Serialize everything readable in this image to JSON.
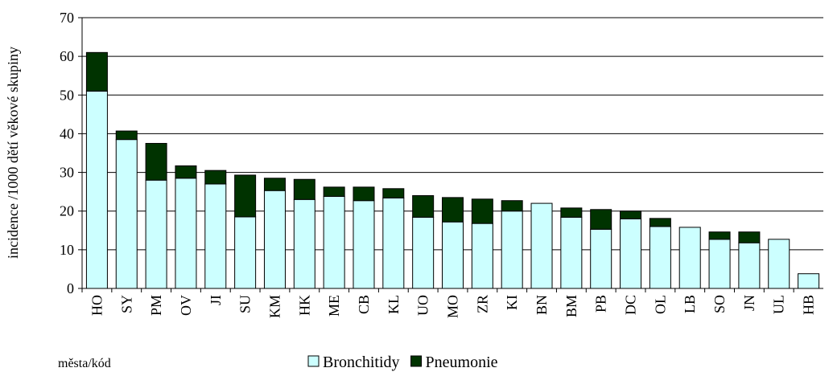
{
  "chart_data": {
    "type": "stacked_bar",
    "y_label": "incidence /1000 dětí věkové skupiny",
    "x_label": "města/kód",
    "categories": [
      "HO",
      "SY",
      "PM",
      "OV",
      "JI",
      "SU",
      "KM",
      "HK",
      "ME",
      "CB",
      "KL",
      "UO",
      "MO",
      "ZR",
      "KI",
      "BN",
      "BM",
      "PB",
      "DC",
      "OL",
      "LB",
      "SO",
      "JN",
      "UL",
      "HB"
    ],
    "series": [
      {
        "name": "Bronchitidy",
        "color": "#ccffff",
        "values": [
          51,
          38.5,
          28,
          28.5,
          27,
          18.5,
          25.3,
          23,
          23.8,
          22.7,
          23.4,
          18.4,
          17.2,
          16.8,
          20,
          22,
          18.4,
          15.3,
          18,
          16,
          15.8,
          12.7,
          11.8,
          12.7,
          3.8
        ]
      },
      {
        "name": "Pneumonie",
        "color": "#003300",
        "values": [
          10,
          2.2,
          9.5,
          3.2,
          3.5,
          10.8,
          3.2,
          5.2,
          2.4,
          3.5,
          2.4,
          5.6,
          6.3,
          6.3,
          2.7,
          0,
          2.4,
          5.1,
          2,
          2.1,
          0,
          1.9,
          2.8,
          0,
          0
        ]
      }
    ],
    "ylim": [
      0,
      70
    ],
    "yticks": [
      0,
      10,
      20,
      30,
      40,
      50,
      60,
      70
    ],
    "grid": true
  }
}
